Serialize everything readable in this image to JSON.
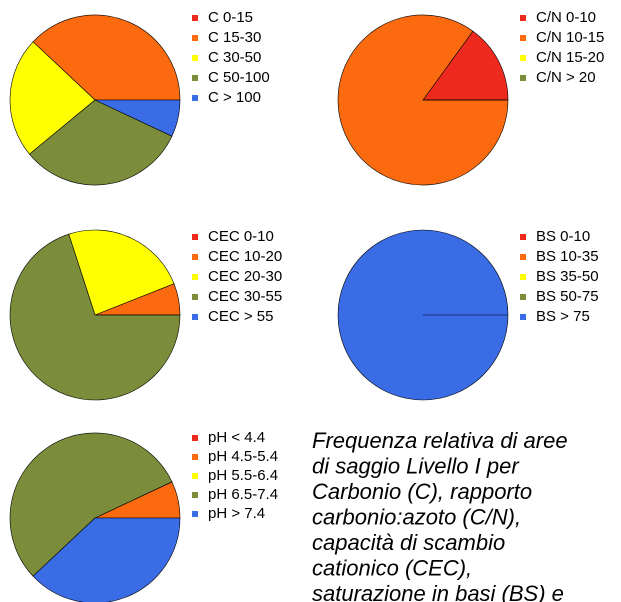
{
  "chart_data": [
    {
      "type": "pie",
      "categories": [
        "C 0-15",
        "C 15-30",
        "C 30-50",
        "C 50-100",
        "C > 100"
      ],
      "values": [
        0,
        38,
        23,
        32,
        7
      ],
      "colors": [
        "#ee2a1e",
        "#fb6a0e",
        "#ffff00",
        "#7b8c3a",
        "#3a6ce6"
      ]
    },
    {
      "type": "pie",
      "categories": [
        "C/N 0-10",
        "C/N 10-15",
        "C/N 15-20",
        "C/N > 20"
      ],
      "values": [
        15,
        85,
        0,
        0
      ],
      "colors": [
        "#ee2a1e",
        "#fb6a0e",
        "#ffff00",
        "#7b8c3a"
      ]
    },
    {
      "type": "pie",
      "categories": [
        "CEC 0-10",
        "CEC 10-20",
        "CEC 20-30",
        "CEC 30-55",
        "CEC > 55"
      ],
      "values": [
        0,
        6,
        24,
        70,
        0
      ],
      "colors": [
        "#ee2a1e",
        "#fb6a0e",
        "#ffff00",
        "#7b8c3a",
        "#3a6ce6"
      ]
    },
    {
      "type": "pie",
      "categories": [
        "BS 0-10",
        "BS 10-35",
        "BS 35-50",
        "BS 50-75",
        "BS > 75"
      ],
      "values": [
        0,
        0,
        0,
        0,
        100
      ],
      "colors": [
        "#ee2a1e",
        "#fb6a0e",
        "#ffff00",
        "#7b8c3a",
        "#3a6ce6"
      ]
    },
    {
      "type": "pie",
      "categories": [
        "pH < 4.4",
        "pH 4.5-5.4",
        "pH 5.5-6.4",
        "pH 6.5-7.4",
        "pH > 7.4"
      ],
      "values": [
        0,
        7,
        0,
        55,
        38
      ],
      "colors": [
        "#ee2a1e",
        "#fb6a0e",
        "#ffff00",
        "#7b8c3a",
        "#3a6ce6"
      ]
    }
  ],
  "caption": [
    "Frequenza relativa di aree",
    "di saggio Livello I per",
    "Carbonio (C), rapporto",
    "carbonio:azoto (C/N),",
    "capacità di scambio",
    "cationico (CEC),",
    "saturazione in basi (BS) e"
  ]
}
